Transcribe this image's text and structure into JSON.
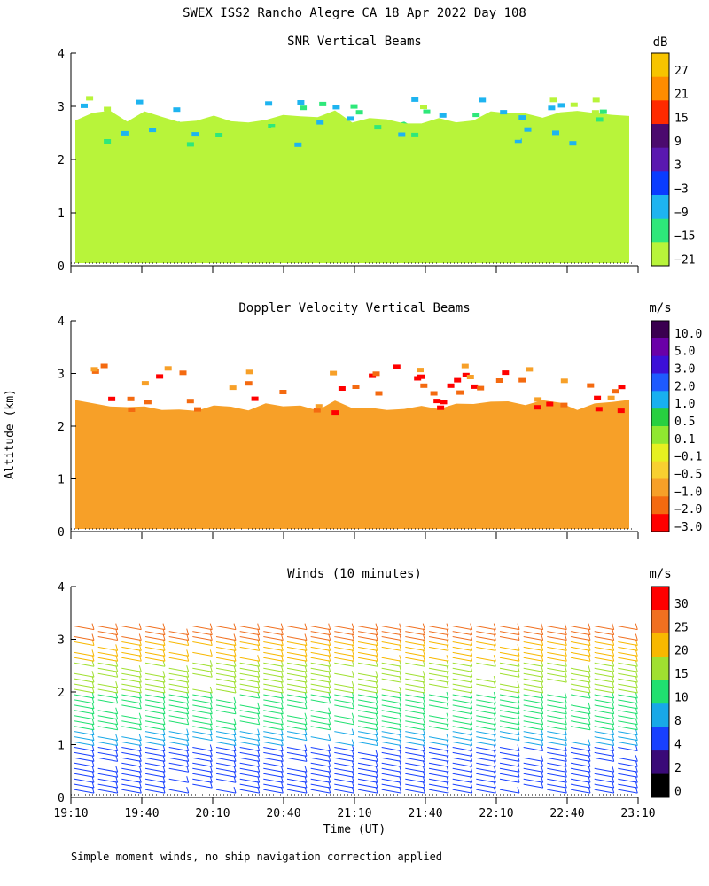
{
  "header": {
    "title": "SWEX ISS2 Rancho Alegre CA  18 Apr 2022 Day 108"
  },
  "axes": {
    "ylabel": "Altitude (km)",
    "xlabel": "Time (UT)",
    "y_ticks": [
      "0",
      "1",
      "2",
      "3",
      "4"
    ],
    "x_ticks": [
      "19:10",
      "19:40",
      "20:10",
      "20:40",
      "21:10",
      "21:40",
      "22:10",
      "22:40",
      "23:10"
    ]
  },
  "footer": {
    "note": "Simple moment winds, no ship navigation correction applied"
  },
  "chart_data": [
    {
      "type": "heatmap",
      "title": "SNR Vertical Beams",
      "unit": "dB",
      "xlim": [
        "19:10",
        "23:10"
      ],
      "ylim": [
        0,
        4
      ],
      "colorbar_labels": [
        "27",
        "21",
        "15",
        "9",
        "3",
        "−3",
        "−9",
        "−15",
        "−21"
      ],
      "colorbar_colors": [
        "#f7c400",
        "#ff8c00",
        "#ff2a00",
        "#4b0a6e",
        "#5a18b0",
        "#0a3cff",
        "#1eb4f0",
        "#2ee87a",
        "#b8f43a"
      ],
      "layers": [
        {
          "top": 0.5,
          "color": "#4b0a6e"
        },
        {
          "top": 0.9,
          "color": "#5a18b0"
        },
        {
          "top": 1.25,
          "color": "#0a3cff"
        },
        {
          "top": 1.55,
          "color": "#1eb4f0"
        },
        {
          "top": 1.9,
          "color": "#b8f43a"
        },
        {
          "top": 2.2,
          "color": "#0a3cff"
        },
        {
          "top": 2.6,
          "color": "#2ee87a"
        },
        {
          "top": 2.8,
          "color": "#b8f43a"
        }
      ]
    },
    {
      "type": "heatmap",
      "title": "Doppler Velocity Vertical Beams",
      "unit": "m/s",
      "xlim": [
        "19:10",
        "23:10"
      ],
      "ylim": [
        0,
        4
      ],
      "colorbar_labels": [
        "10.0",
        "5.0",
        "3.0",
        "2.0",
        "1.0",
        "0.5",
        "0.1",
        "−0.1",
        "−0.5",
        "−1.0",
        "−2.0",
        "−3.0"
      ],
      "colorbar_colors": [
        "#3a0050",
        "#6a00a8",
        "#3c10d8",
        "#1e5aff",
        "#18b0f0",
        "#28d040",
        "#90e830",
        "#e6f020",
        "#f8d030",
        "#f7a028",
        "#f46a10",
        "#ff0000"
      ],
      "layers": [
        {
          "top": 1.0,
          "color": "#f7a028"
        },
        {
          "top": 1.8,
          "color": "#f8d030"
        },
        {
          "top": 2.4,
          "color": "#f7a028"
        }
      ]
    },
    {
      "type": "barbs",
      "title": "Winds (10 minutes)",
      "unit": "m/s",
      "xlim": [
        "19:10",
        "23:10"
      ],
      "ylim": [
        0,
        4
      ],
      "colorbar_labels": [
        "30",
        "25",
        "20",
        "15",
        "10",
        "8",
        "4",
        "2",
        "0"
      ],
      "colorbar_colors": [
        "#ff0000",
        "#f07020",
        "#f8b800",
        "#a0e030",
        "#20e070",
        "#18a8e8",
        "#1840ff",
        "#3a0a78",
        "#000000"
      ],
      "profiles_min": [
        0,
        10,
        20,
        30,
        40,
        50,
        60,
        70,
        80,
        90,
        100,
        110,
        120,
        130,
        140,
        150,
        160,
        170,
        180,
        190,
        200,
        210,
        220,
        230
      ],
      "speed_profile": [
        {
          "alt": 0.2,
          "speed": 5
        },
        {
          "alt": 1.0,
          "speed": 8
        },
        {
          "alt": 1.6,
          "speed": 12
        },
        {
          "alt": 2.2,
          "speed": 17
        },
        {
          "alt": 2.8,
          "speed": 22
        },
        {
          "alt": 3.2,
          "speed": 27
        }
      ]
    }
  ]
}
